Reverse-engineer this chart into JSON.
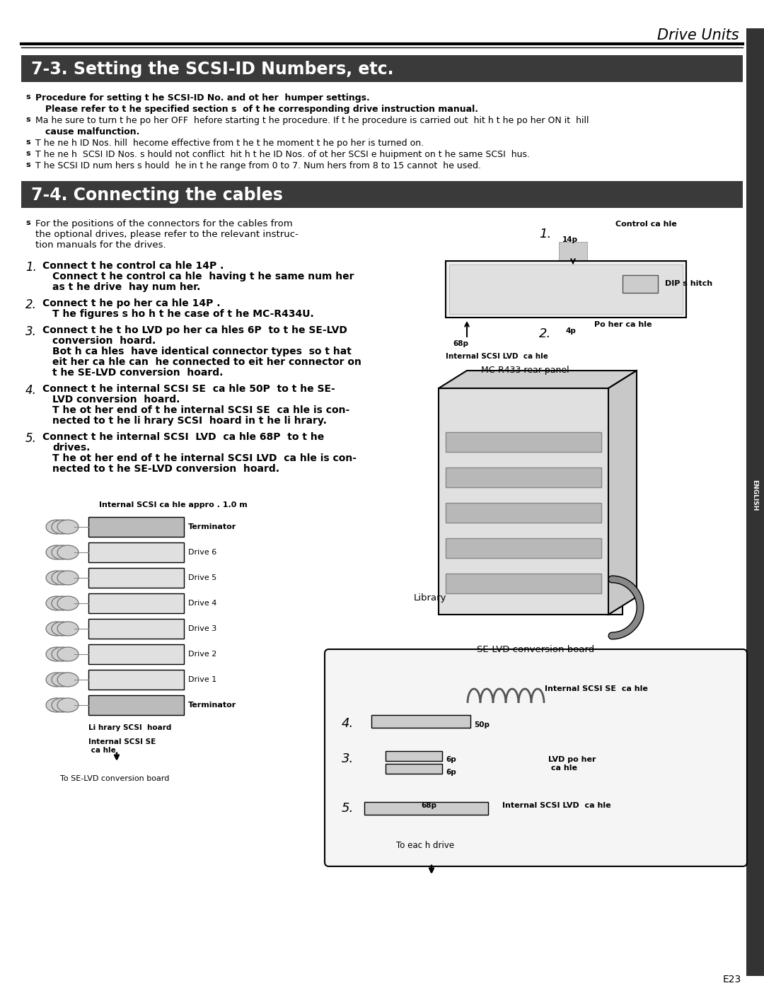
{
  "page_bg": "#ffffff",
  "header_text": "Drive Units",
  "sidebar_color": "#333333",
  "sidebar_text": "ENGLISH",
  "section1_title": "7-3. Setting the SCSI-ID Numbers, etc.",
  "section1_bg": "#3a3a3a",
  "section1_text_color": "#ffffff",
  "section2_title": "7-4. Connecting the cables",
  "section2_bg": "#3a3a3a",
  "section2_text_color": "#ffffff",
  "footer_text": "E23",
  "s1_lines": [
    [
      "b",
      "Procedure for setting t he SCSI-ID No. and ot her  humper settings.",
      true
    ],
    [
      "i",
      "Please refer to t he specified section s  of t he corresponding drive instruction manual.",
      true
    ],
    [
      "b",
      "Ma he sure to turn t he po her OFF  hefore starting t he procedure. If t he procedure is carried out  hit h t he po her ON it  hill",
      false
    ],
    [
      "i",
      "cause malfunction.",
      true
    ],
    [
      "b",
      "T he ne h ID Nos. hill  hecome effective from t he t he moment t he po her is turned on.",
      false
    ],
    [
      "b",
      "T he ne h  SCSI ID Nos. s hould not conflict  hit h t he ID Nos. of ot her SCSI e huipment on t he same SCSI  hus.",
      false
    ],
    [
      "b",
      "T he SCSI ID num hers s hould  he in t he range from 0 to 7. Num hers from 8 to 15 cannot  he used.",
      false
    ]
  ],
  "intro_lines": [
    "For the positions of the connectors for the cables from",
    "the optional drives, please refer to the relevant instruc-",
    "tion manuals for the drives."
  ],
  "steps": [
    {
      "num": "1.",
      "first": "Connect t he control ca hle 14P .",
      "rest": [
        "Connect t he control ca hle  having t he same num her",
        "as t he drive  hay num her."
      ]
    },
    {
      "num": "2.",
      "first": "Connect t he po her ca hle 14P .",
      "rest": [
        "T he figures s ho h t he case of t he MC-R434U."
      ]
    },
    {
      "num": "3.",
      "first": "Connect t he t ho LVD po her ca hles 6P  to t he SE-LVD",
      "rest": [
        "conversion  hoard.",
        "Bot h ca hles  have identical connector types  so t hat",
        "eit her ca hle can  he connected to eit her connector on",
        "t he SE-LVD conversion  hoard."
      ]
    },
    {
      "num": "4.",
      "first": "Connect t he internal SCSI SE  ca hle 50P  to t he SE-",
      "rest": [
        "LVD conversion  hoard.",
        "T he ot her end of t he internal SCSI SE  ca hle is con-",
        "nected to t he li hrary SCSI  hoard in t he li hrary."
      ]
    },
    {
      "num": "5.",
      "first": "Connect t he internal SCSI  LVD  ca hle 68P  to t he",
      "rest": [
        "drives.",
        "T he ot her end of t he internal SCSI LVD  ca hle is con-",
        "nected to t he SE-LVD conversion  hoard."
      ]
    }
  ],
  "drive_labels": [
    "Terminator",
    "Drive 6",
    "Drive 5",
    "Drive 4",
    "Drive 3",
    "Drive 2",
    "Drive 1",
    "Terminator"
  ],
  "bottom_caption": "Internal SCSI ca hle appro . 1.0 m",
  "bottom_footer": "To SE-LVD conversion board",
  "lib_label": "Library",
  "mc_r433_label": "MC-R433 rear panel",
  "se_lvd_label": "SE-LVD conversion board",
  "control_cable_label": "Control ca hle",
  "dip_switch_label": "DIP s hitch",
  "power_cable_label": "Po her ca hle",
  "int_scsi_lvd_label": "Internal SCSI LVD  ca hle",
  "int_scsi_se_label": "Internal SCSI SE  ca hle",
  "lvd_power_label": "LVD po her\n ca hle",
  "int_scsi_lvd_bottom": "Internal SCSI LVD  ca hle",
  "to_each_label": "To eac h drive",
  "lib_scsi_label": "Li hrary SCSI  hoard",
  "int_scsi_se_bottom": "Internal SCSI SE\n ca hle"
}
